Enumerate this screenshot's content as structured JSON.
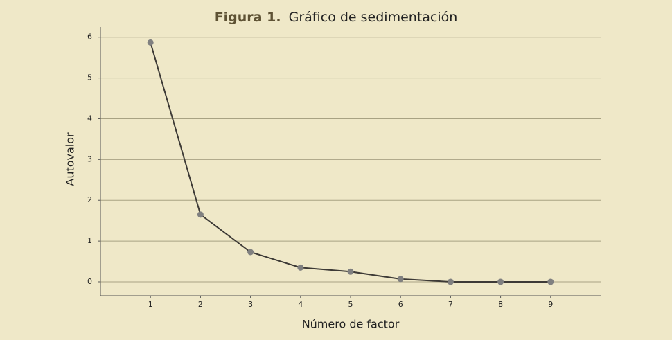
{
  "chart_data": {
    "type": "line",
    "figure_label": "Figura 1.",
    "title": "Gráfico de sedimentación",
    "x_label": "Número de factor",
    "y_label": "Autovalor",
    "x": [
      1,
      2,
      3,
      4,
      5,
      6,
      7,
      8,
      9
    ],
    "series": [
      {
        "color": "#3d3a36",
        "marker_color": "#808080",
        "values": [
          5.87,
          1.65,
          0.73,
          0.35,
          0.25,
          0.07,
          0,
          0,
          0
        ]
      }
    ],
    "xlim": [
      0,
      10
    ],
    "xticks": [
      1,
      2,
      3,
      4,
      5,
      6,
      7,
      8,
      9
    ],
    "ylim": [
      -0.34,
      6.25
    ],
    "yticks": [
      0,
      1,
      2,
      3,
      4,
      5,
      6
    ],
    "grid": true
  }
}
